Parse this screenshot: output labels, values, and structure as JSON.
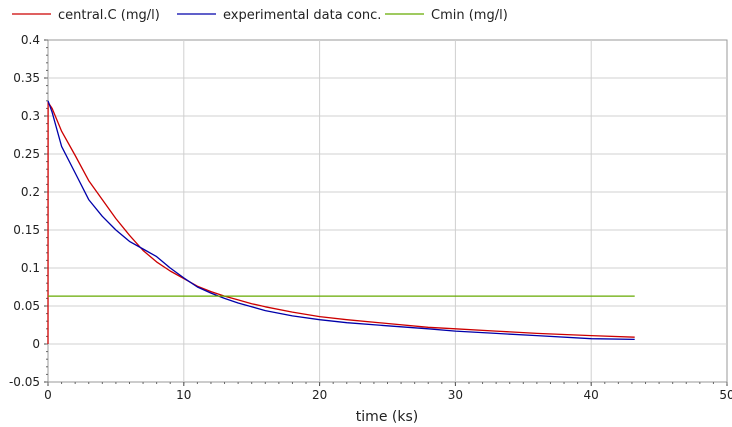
{
  "chart_data": {
    "type": "line",
    "title": "",
    "xlabel": "time (ks)",
    "ylabel": "",
    "xlim": [
      0,
      50
    ],
    "ylim": [
      -0.05,
      0.4
    ],
    "xticks": [
      "0",
      "10",
      "20",
      "30",
      "40",
      "50"
    ],
    "yticks": [
      "-0.05",
      "0",
      "0.05",
      "0.1",
      "0.15",
      "0.2",
      "0.25",
      "0.3",
      "0.35",
      "0.4"
    ],
    "grid": true,
    "legend_position": "top",
    "series": [
      {
        "name": "central.C (mg/l)",
        "color": "#cc0000",
        "x": [
          0,
          0.01,
          0.3,
          1,
          2,
          3,
          4,
          5,
          6,
          7,
          8,
          9,
          10,
          11,
          12,
          13,
          14,
          15,
          16,
          18,
          20,
          22,
          25,
          28,
          30,
          33,
          36,
          40,
          43.2
        ],
        "y": [
          0,
          0.318,
          0.31,
          0.28,
          0.248,
          0.215,
          0.19,
          0.165,
          0.143,
          0.123,
          0.108,
          0.096,
          0.086,
          0.076,
          0.069,
          0.063,
          0.058,
          0.053,
          0.049,
          0.042,
          0.036,
          0.032,
          0.027,
          0.022,
          0.02,
          0.017,
          0.014,
          0.011,
          0.009
        ]
      },
      {
        "name": "experimental data conc.",
        "color": "#0000aa",
        "x": [
          0,
          0.3,
          1,
          2,
          3,
          4,
          5,
          6,
          7,
          8,
          9,
          10,
          11,
          12,
          13,
          14,
          16,
          18,
          20,
          22,
          25,
          28,
          30,
          33,
          36,
          40,
          43.2
        ],
        "y": [
          0.32,
          0.305,
          0.26,
          0.225,
          0.19,
          0.168,
          0.15,
          0.135,
          0.125,
          0.115,
          0.1,
          0.087,
          0.075,
          0.067,
          0.06,
          0.054,
          0.044,
          0.037,
          0.032,
          0.028,
          0.024,
          0.02,
          0.017,
          0.014,
          0.011,
          0.007,
          0.006
        ]
      },
      {
        "name": "Cmin (mg/l)",
        "color": "#66aa00",
        "x": [
          0,
          43.2
        ],
        "y": [
          0.063,
          0.063
        ]
      }
    ]
  }
}
